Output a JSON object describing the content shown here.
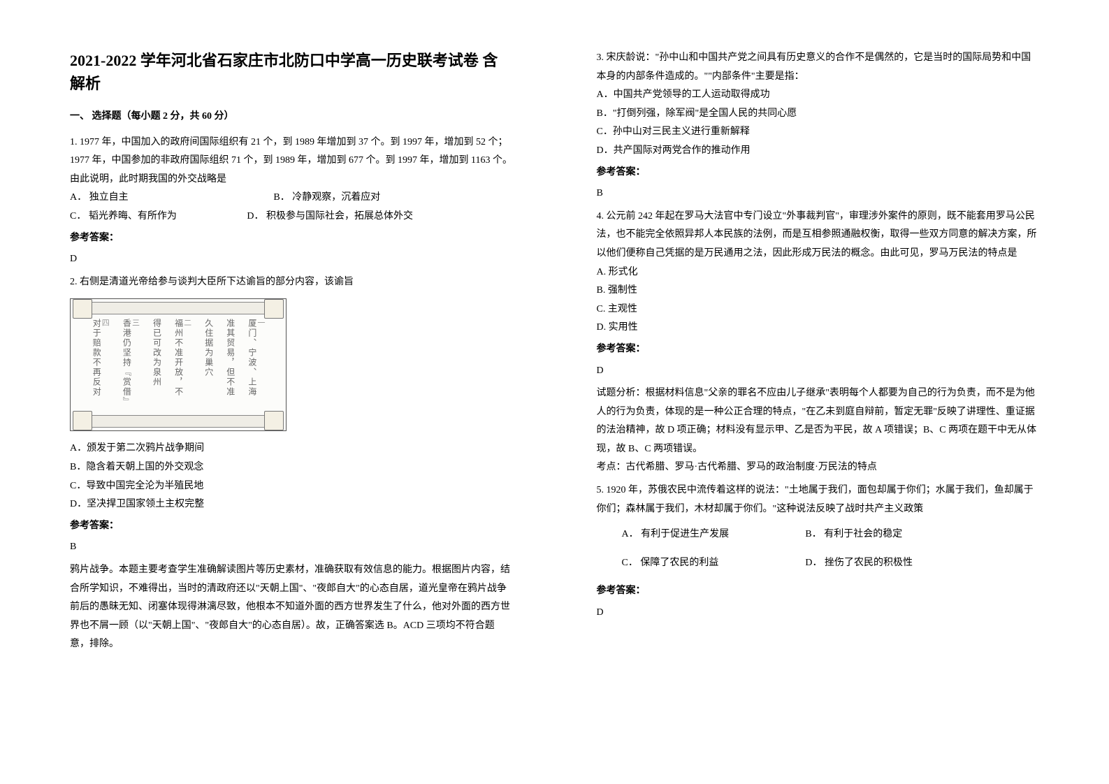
{
  "title": "2021-2022 学年河北省石家庄市北防口中学高一历史联考试卷 含解析",
  "section1": "一、 选择题（每小题 2 分，共 60 分）",
  "q1": {
    "stem": "1. 1977 年，中国加入的政府间国际组织有 21 个，到 1989 年增加到 37 个。到 1997 年，增加到 52 个；1977 年，中国参加的非政府国际组织 71 个，到 1989 年，增加到 677 个。到 1997 年，增加到 1163 个。由此说明，此时期我国的外交战略是",
    "a": "A． 独立自主",
    "b": "B． 冷静观察，沉着应对",
    "c": "C． 韬光养晦、有所作为",
    "d": "D． 积极参与国际社会，拓展总体外交",
    "ans_label": "参考答案：",
    "ans": "D"
  },
  "q2": {
    "stem": "2. 右侧是清道光帝给参与谈判大臣所下达谕旨的部分内容，该谕旨",
    "img_cols": [
      {
        "h": "一",
        "t": "厦门、宁波、上海"
      },
      {
        "h": "",
        "t": "准其贸易，但不准"
      },
      {
        "h": "",
        "t": "久住据为巢穴"
      },
      {
        "h": "二",
        "t": "福州不准开放，不"
      },
      {
        "h": "",
        "t": "得已可改为泉州"
      },
      {
        "h": "三",
        "t": "香港仍坚持『赏借』"
      },
      {
        "h": "四",
        "t": "对于赔款不再反对"
      }
    ],
    "a": "A．颁发于第二次鸦片战争期间",
    "b": "B．隐含着天朝上国的外交观念",
    "c": "C．导致中国完全沦为半殖民地",
    "d": "D．坚决捍卫国家领土主权完整",
    "ans_label": "参考答案：",
    "ans": "B",
    "explain": "鸦片战争。本题主要考查学生准确解读图片等历史素材，准确获取有效信息的能力。根据图片内容，结合所学知识，不难得出，当时的清政府还以\"天朝上国\"、\"夜郎自大\"的心态自居，道光皇帝在鸦片战争前后的愚昧无知、闭塞体现得淋漓尽致，他根本不知道外面的西方世界发生了什么，他对外面的西方世界也不屑一顾（以\"天朝上国\"、\"夜郎自大\"的心态自居）。故，正确答案选 B。ACD 三项均不符合题意，排除。"
  },
  "q3": {
    "stem": "3. 宋庆龄说：\"孙中山和中国共产党之间具有历史意义的合作不是偶然的，它是当时的国际局势和中国本身的内部条件造成的。\"\"内部条件\"主要是指：",
    "a": "A．中国共产党领导的工人运动取得成功",
    "b": "B．\"打倒列强，除军阀\"是全国人民的共同心愿",
    "c": "C．孙中山对三民主义进行重新解释",
    "d": "D．共产国际对两党合作的推动作用",
    "ans_label": "参考答案：",
    "ans": "B"
  },
  "q4": {
    "stem": "4. 公元前 242 年起在罗马大法官中专门设立\"外事裁判官\"，审理涉外案件的原则，既不能套用罗马公民法，也不能完全依照异邦人本民族的法例，而是互相参照通融权衡，取得一些双方同意的解决方案，所以他们便称自己凭据的是万民通用之法，因此形成万民法的概念。由此可见，罗马万民法的特点是",
    "a": "A. 形式化",
    "b": "B. 强制性",
    "c": "C. 主观性",
    "d": "D. 实用性",
    "ans_label": "参考答案：",
    "ans": "D",
    "explain1": "试题分析：根据材料信息\"父亲的罪名不应由儿子继承\"表明每个人都要为自己的行为负责，而不是为他人的行为负责，体现的是一种公正合理的特点，\"在乙未到庭自辩前，暂定无罪\"反映了讲理性、重证据的法治精神，故 D 项正确；材料没有显示甲、乙是否为平民，故 A 项错误；B、C 两项在题干中无从体现，故 B、C 两项错误。",
    "explain2": "考点：古代希腊、罗马·古代希腊、罗马的政治制度·万民法的特点"
  },
  "q5": {
    "stem": "5. 1920 年，苏俄农民中流传着这样的说法：\"土地属于我们，面包却属于你们；水属于我们，鱼却属于你们；森林属于我们，木材却属于你们。\"这种说法反映了战时共产主义政策",
    "a": "A． 有利于促进生产发展",
    "b": "B． 有利于社会的稳定",
    "c": "C． 保障了农民的利益",
    "d": "D． 挫伤了农民的积极性",
    "ans_label": "参考答案：",
    "ans": "D"
  }
}
